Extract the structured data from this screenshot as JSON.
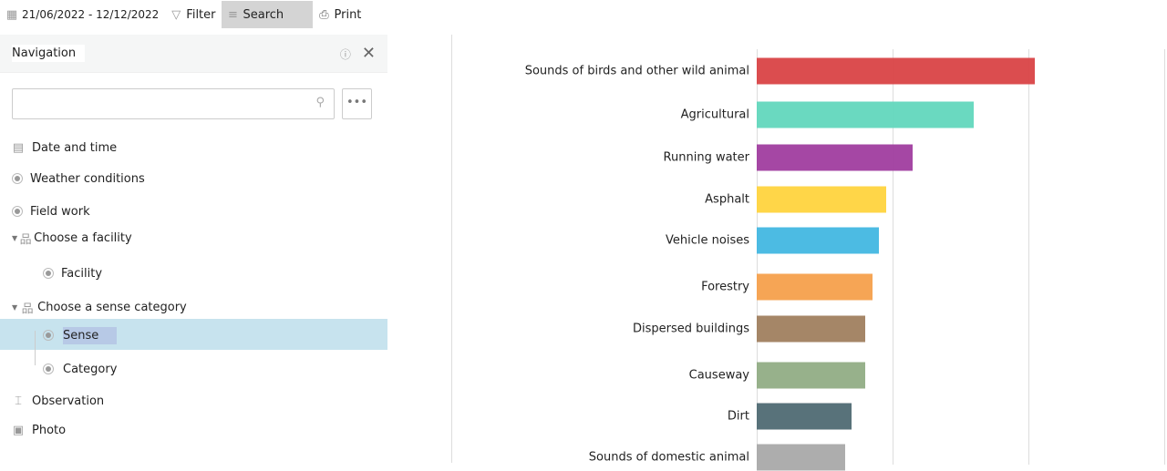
{
  "toolbar": {
    "date_range": "21/06/2022 - 12/12/2022",
    "filter": "Filter",
    "search": "Search",
    "print": "Print"
  },
  "navigation": {
    "title": "Navigation",
    "more": "•••",
    "items": [
      {
        "label": "Date and time"
      },
      {
        "label": "Weather conditions"
      },
      {
        "label": "Field work"
      },
      {
        "label": "Choose a facility"
      },
      {
        "label": "Facility"
      },
      {
        "label": "Choose a sense category"
      },
      {
        "label": "Sense"
      },
      {
        "label": "Category"
      },
      {
        "label": "Observation"
      },
      {
        "label": "Photo"
      }
    ]
  },
  "chart_data": {
    "type": "bar",
    "orientation": "horizontal",
    "title": "",
    "xlabel": "",
    "ylabel": "",
    "xlim": [
      0,
      3
    ],
    "grid": true,
    "categories": [
      "Sounds of birds and other wild animal",
      "Agricultural",
      "Running water",
      "Asphalt",
      "Vehicle noises",
      "Forestry",
      "Dispersed buildings",
      "Causeway",
      "Dirt",
      "Sounds of domestic animal"
    ],
    "values": [
      2.05,
      1.6,
      1.15,
      0.95,
      0.9,
      0.85,
      0.8,
      0.8,
      0.7,
      0.65
    ],
    "colors": [
      "#d94346",
      "#62d7bd",
      "#a03d9f",
      "#ffd43e",
      "#42b7e2",
      "#f6a04c",
      "#a0805f",
      "#91ad85",
      "#4f6a73",
      "#a9a9a9"
    ]
  }
}
